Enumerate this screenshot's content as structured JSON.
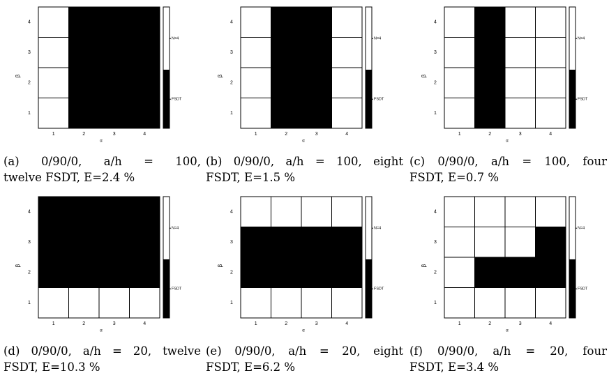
{
  "legend_labels": {
    "top": "N=4",
    "bottom": "FSDT"
  },
  "axis_labels": {
    "x": "α",
    "y": "β"
  },
  "colors": {
    "fsdt": "#000000",
    "n4": "#ffffff",
    "grid": "#000000"
  },
  "chart_data": [
    {
      "type": "heatmap",
      "caption": [
        "(a) 0/90/0, a/h = 100,",
        "twelve FSDT, E=2.4 %"
      ],
      "x_ticks": [
        "1",
        "2",
        "3",
        "4"
      ],
      "y_ticks": [
        "1",
        "2",
        "3",
        "4"
      ],
      "xlabel": "α",
      "ylabel": "β",
      "legend": [
        "N=4",
        "FSDT"
      ],
      "grid_rows_top_to_bottom": [
        [
          0,
          1,
          1,
          1
        ],
        [
          0,
          1,
          1,
          1
        ],
        [
          0,
          1,
          1,
          1
        ],
        [
          0,
          1,
          1,
          1
        ]
      ]
    },
    {
      "type": "heatmap",
      "caption": [
        "(b) 0/90/0, a/h = 100, eight",
        "FSDT, E=1.5 %"
      ],
      "x_ticks": [
        "1",
        "2",
        "3",
        "4"
      ],
      "y_ticks": [
        "1",
        "2",
        "3",
        "4"
      ],
      "xlabel": "α",
      "ylabel": "β",
      "legend": [
        "N=4",
        "FSDT"
      ],
      "grid_rows_top_to_bottom": [
        [
          0,
          1,
          1,
          0
        ],
        [
          0,
          1,
          1,
          0
        ],
        [
          0,
          1,
          1,
          0
        ],
        [
          0,
          1,
          1,
          0
        ]
      ]
    },
    {
      "type": "heatmap",
      "caption": [
        "(c) 0/90/0, a/h = 100, four",
        "FSDT, E=0.7 %"
      ],
      "x_ticks": [
        "1",
        "2",
        "3",
        "4"
      ],
      "y_ticks": [
        "1",
        "2",
        "3",
        "4"
      ],
      "xlabel": "α",
      "ylabel": "β",
      "legend": [
        "N=4",
        "FSDT"
      ],
      "grid_rows_top_to_bottom": [
        [
          0,
          1,
          0,
          0
        ],
        [
          0,
          1,
          0,
          0
        ],
        [
          0,
          1,
          0,
          0
        ],
        [
          0,
          1,
          0,
          0
        ]
      ]
    },
    {
      "type": "heatmap",
      "caption": [
        "(d) 0/90/0, a/h = 20, twelve",
        "FSDT, E=10.3 %"
      ],
      "x_ticks": [
        "1",
        "2",
        "3",
        "4"
      ],
      "y_ticks": [
        "1",
        "2",
        "3",
        "4"
      ],
      "xlabel": "α",
      "ylabel": "β",
      "legend": [
        "N=4",
        "FSDT"
      ],
      "grid_rows_top_to_bottom": [
        [
          1,
          1,
          1,
          1
        ],
        [
          1,
          1,
          1,
          1
        ],
        [
          1,
          1,
          1,
          1
        ],
        [
          0,
          0,
          0,
          0
        ]
      ]
    },
    {
      "type": "heatmap",
      "caption": [
        "(e) 0/90/0, a/h = 20, eight",
        "FSDT, E=6.2 %"
      ],
      "x_ticks": [
        "1",
        "2",
        "3",
        "4"
      ],
      "y_ticks": [
        "1",
        "2",
        "3",
        "4"
      ],
      "xlabel": "α",
      "ylabel": "β",
      "legend": [
        "N=4",
        "FSDT"
      ],
      "grid_rows_top_to_bottom": [
        [
          0,
          0,
          0,
          0
        ],
        [
          1,
          1,
          1,
          1
        ],
        [
          1,
          1,
          1,
          1
        ],
        [
          0,
          0,
          0,
          0
        ]
      ]
    },
    {
      "type": "heatmap",
      "caption": [
        "(f) 0/90/0, a/h = 20, four",
        "FSDT, E=3.4 %"
      ],
      "x_ticks": [
        "1",
        "2",
        "3",
        "4"
      ],
      "y_ticks": [
        "1",
        "2",
        "3",
        "4"
      ],
      "xlabel": "α",
      "ylabel": "β",
      "legend": [
        "N=4",
        "FSDT"
      ],
      "grid_rows_top_to_bottom": [
        [
          0,
          0,
          0,
          0
        ],
        [
          0,
          0,
          0,
          1
        ],
        [
          0,
          1,
          1,
          1
        ],
        [
          0,
          0,
          0,
          0
        ]
      ]
    }
  ]
}
